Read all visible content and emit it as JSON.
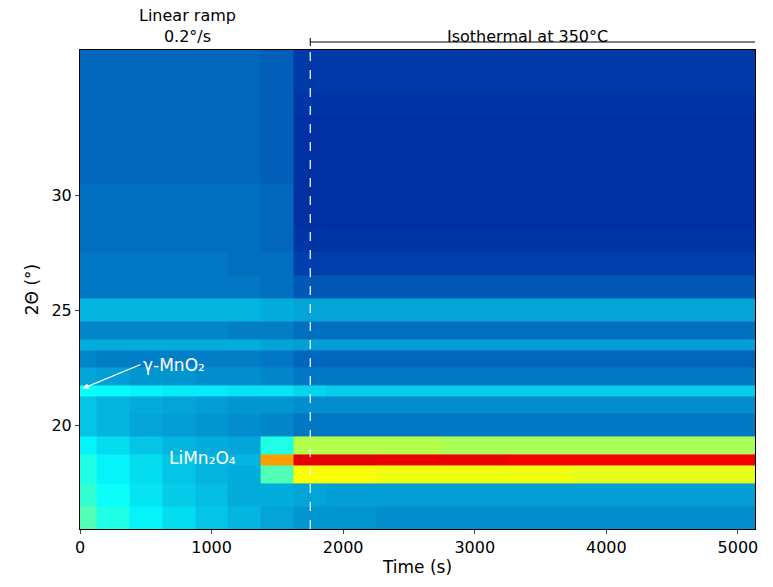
{
  "chart_data": {
    "type": "heatmap",
    "x_label": "Time (s)",
    "y_label": "2Θ (°)",
    "xlim": [
      0,
      5130
    ],
    "ylim": [
      15.5,
      36.3
    ],
    "xticks": [
      0,
      1000,
      2000,
      3000,
      4000,
      5000
    ],
    "yticks": [
      20,
      25,
      30
    ],
    "grid": false,
    "color": "Jet",
    "zlim": [
      0,
      1
    ],
    "ramp_end": 1750,
    "header": [
      {
        "lines": [
          "Linear ramp",
          "0.2°/s"
        ],
        "x": 815
      },
      {
        "lines": [
          "Isothermal at 350°C"
        ],
        "x": 3400
      }
    ],
    "annotations": [
      {
        "text": "γ-MnO₂",
        "x": 20,
        "y": 21.6,
        "arrow": true
      },
      {
        "text": "LiMn₂O₄",
        "x": 930,
        "y": 18.6,
        "arrow": false
      }
    ],
    "cells": {
      "x": [
        0,
        250,
        500,
        750,
        1000,
        1250,
        1500,
        1750,
        2000,
        2500,
        3000,
        3500,
        4000,
        4500,
        5000
      ],
      "y": [
        16,
        17,
        18,
        18.5,
        19,
        20,
        21,
        21.5,
        22,
        23,
        23.5,
        24,
        25,
        26,
        27,
        28,
        29,
        30,
        31,
        32,
        33,
        34,
        35,
        36
      ],
      "z": [
        [
          0.45,
          0.4,
          0.36,
          0.33,
          0.3,
          0.28,
          0.26,
          0.24,
          0.24,
          0.23,
          0.23,
          0.23,
          0.23,
          0.23,
          0.23
        ],
        [
          0.42,
          0.38,
          0.34,
          0.31,
          0.29,
          0.27,
          0.27,
          0.26,
          0.25,
          0.25,
          0.25,
          0.25,
          0.25,
          0.25,
          0.25
        ],
        [
          0.4,
          0.36,
          0.33,
          0.3,
          0.28,
          0.27,
          0.45,
          0.62,
          0.62,
          0.61,
          0.61,
          0.61,
          0.6,
          0.6,
          0.6
        ],
        [
          0.4,
          0.36,
          0.33,
          0.3,
          0.28,
          0.28,
          0.72,
          0.9,
          0.9,
          0.89,
          0.89,
          0.88,
          0.88,
          0.88,
          0.88
        ],
        [
          0.36,
          0.33,
          0.3,
          0.28,
          0.27,
          0.26,
          0.4,
          0.55,
          0.55,
          0.55,
          0.54,
          0.54,
          0.54,
          0.54,
          0.54
        ],
        [
          0.3,
          0.28,
          0.26,
          0.25,
          0.24,
          0.23,
          0.22,
          0.2,
          0.2,
          0.2,
          0.2,
          0.2,
          0.2,
          0.2,
          0.2
        ],
        [
          0.3,
          0.28,
          0.27,
          0.26,
          0.25,
          0.24,
          0.24,
          0.23,
          0.23,
          0.23,
          0.23,
          0.23,
          0.23,
          0.23,
          0.23
        ],
        [
          0.38,
          0.37,
          0.36,
          0.35,
          0.35,
          0.34,
          0.34,
          0.32,
          0.31,
          0.31,
          0.31,
          0.31,
          0.31,
          0.31,
          0.31
        ],
        [
          0.26,
          0.25,
          0.24,
          0.24,
          0.23,
          0.23,
          0.22,
          0.2,
          0.2,
          0.2,
          0.2,
          0.2,
          0.2,
          0.2,
          0.2
        ],
        [
          0.22,
          0.21,
          0.21,
          0.21,
          0.21,
          0.21,
          0.2,
          0.18,
          0.18,
          0.18,
          0.18,
          0.18,
          0.18,
          0.18,
          0.18
        ],
        [
          0.27,
          0.27,
          0.27,
          0.27,
          0.27,
          0.27,
          0.26,
          0.25,
          0.25,
          0.25,
          0.25,
          0.25,
          0.25,
          0.25,
          0.25
        ],
        [
          0.22,
          0.22,
          0.22,
          0.22,
          0.22,
          0.21,
          0.21,
          0.19,
          0.19,
          0.19,
          0.19,
          0.19,
          0.19,
          0.19,
          0.19
        ],
        [
          0.28,
          0.28,
          0.28,
          0.28,
          0.28,
          0.28,
          0.27,
          0.26,
          0.26,
          0.26,
          0.26,
          0.26,
          0.26,
          0.26,
          0.26
        ],
        [
          0.2,
          0.2,
          0.2,
          0.2,
          0.2,
          0.2,
          0.19,
          0.16,
          0.16,
          0.16,
          0.16,
          0.16,
          0.16,
          0.16,
          0.16
        ],
        [
          0.2,
          0.2,
          0.2,
          0.2,
          0.2,
          0.19,
          0.19,
          0.13,
          0.13,
          0.13,
          0.13,
          0.13,
          0.13,
          0.13,
          0.13
        ],
        [
          0.19,
          0.19,
          0.19,
          0.19,
          0.19,
          0.19,
          0.18,
          0.11,
          0.11,
          0.11,
          0.11,
          0.11,
          0.11,
          0.11,
          0.11
        ],
        [
          0.19,
          0.19,
          0.19,
          0.19,
          0.19,
          0.19,
          0.18,
          0.1,
          0.1,
          0.1,
          0.1,
          0.1,
          0.1,
          0.1,
          0.1
        ],
        [
          0.19,
          0.19,
          0.19,
          0.19,
          0.19,
          0.19,
          0.18,
          0.1,
          0.1,
          0.1,
          0.1,
          0.1,
          0.1,
          0.1,
          0.1
        ],
        [
          0.18,
          0.18,
          0.18,
          0.18,
          0.18,
          0.18,
          0.17,
          0.1,
          0.1,
          0.1,
          0.1,
          0.1,
          0.1,
          0.1,
          0.1
        ],
        [
          0.18,
          0.18,
          0.18,
          0.18,
          0.18,
          0.18,
          0.17,
          0.1,
          0.1,
          0.1,
          0.1,
          0.1,
          0.1,
          0.1,
          0.1
        ],
        [
          0.18,
          0.18,
          0.18,
          0.18,
          0.18,
          0.18,
          0.17,
          0.1,
          0.1,
          0.1,
          0.1,
          0.1,
          0.1,
          0.1,
          0.1
        ],
        [
          0.18,
          0.18,
          0.18,
          0.18,
          0.18,
          0.18,
          0.17,
          0.11,
          0.11,
          0.11,
          0.11,
          0.11,
          0.11,
          0.11,
          0.11
        ],
        [
          0.18,
          0.18,
          0.18,
          0.18,
          0.18,
          0.18,
          0.17,
          0.12,
          0.12,
          0.12,
          0.12,
          0.12,
          0.12,
          0.12,
          0.12
        ],
        [
          0.18,
          0.18,
          0.18,
          0.18,
          0.18,
          0.18,
          0.17,
          0.12,
          0.12,
          0.12,
          0.12,
          0.12,
          0.12,
          0.12,
          0.12
        ]
      ]
    }
  }
}
